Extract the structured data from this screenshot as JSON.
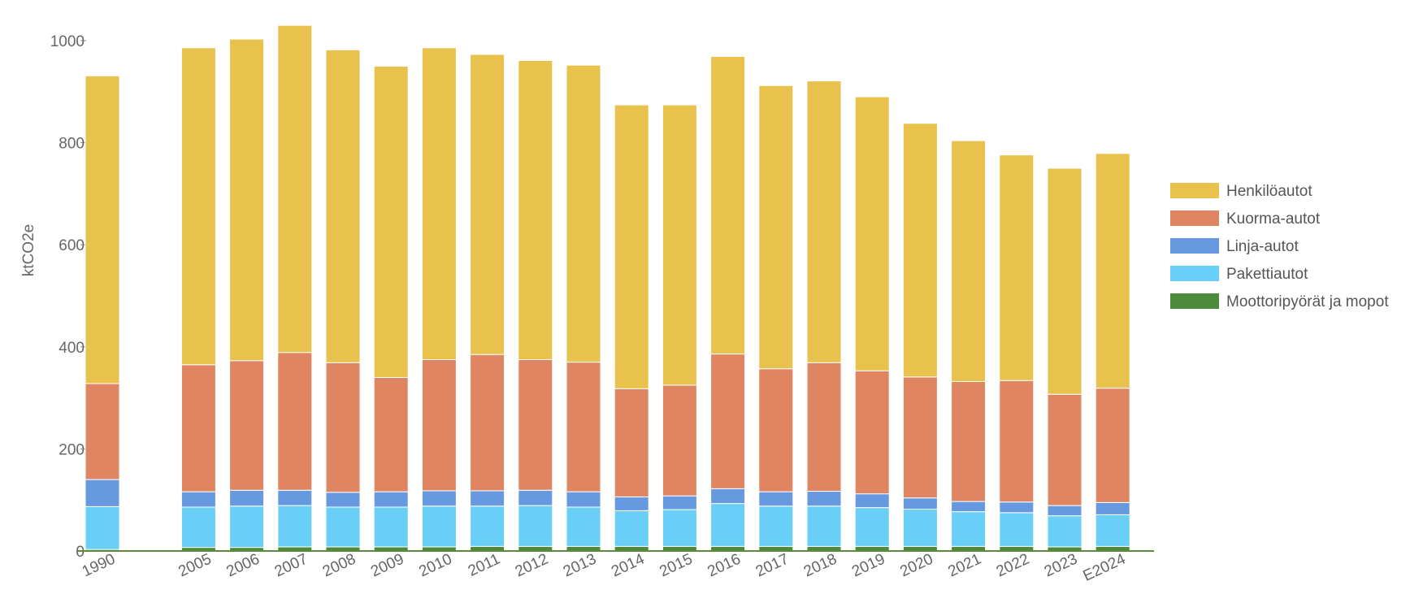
{
  "chart_data": {
    "type": "bar",
    "stacked": true,
    "title": "",
    "xlabel": "",
    "ylabel": "ktCO2e",
    "ylim": [
      0,
      1000
    ],
    "yticks": [
      0,
      200,
      400,
      600,
      800,
      1000
    ],
    "grid": false,
    "legend_position": "right",
    "categories": [
      "1990",
      "",
      "2005",
      "2006",
      "2007",
      "2008",
      "2009",
      "2010",
      "2011",
      "2012",
      "2013",
      "2014",
      "2015",
      "2016",
      "2017",
      "2018",
      "2019",
      "2020",
      "2021",
      "2022",
      "2023",
      "E2024"
    ],
    "series": [
      {
        "name": "Moottoripyörät ja mopot",
        "color": "#4b8b3b",
        "values": [
          3,
          null,
          7,
          7,
          8,
          8,
          8,
          8,
          9,
          9,
          9,
          9,
          9,
          9,
          9,
          9,
          9,
          9,
          9,
          9,
          8,
          9
        ]
      },
      {
        "name": "Pakettiautot",
        "color": "#6acff6",
        "values": [
          84,
          null,
          79,
          81,
          81,
          78,
          78,
          80,
          79,
          80,
          77,
          70,
          72,
          84,
          79,
          79,
          76,
          73,
          68,
          66,
          61,
          62
        ]
      },
      {
        "name": "Linja-autot",
        "color": "#6699e0",
        "values": [
          53,
          null,
          30,
          31,
          30,
          29,
          30,
          30,
          30,
          30,
          30,
          27,
          27,
          29,
          28,
          29,
          27,
          22,
          20,
          21,
          20,
          24
        ]
      },
      {
        "name": "Kuorma-autot",
        "color": "#df8562",
        "values": [
          188,
          null,
          249,
          254,
          270,
          254,
          224,
          257,
          267,
          256,
          254,
          212,
          217,
          264,
          241,
          252,
          241,
          237,
          235,
          238,
          218,
          224
        ]
      },
      {
        "name": "Henkilöautot",
        "color": "#e9c24d",
        "values": [
          603,
          null,
          621,
          630,
          641,
          613,
          610,
          611,
          588,
          586,
          582,
          556,
          549,
          583,
          555,
          552,
          537,
          497,
          472,
          442,
          443,
          460
        ]
      }
    ],
    "legend_order": [
      "Henkilöautot",
      "Kuorma-autot",
      "Linja-autot",
      "Pakettiautot",
      "Moottoripyörät ja mopot"
    ]
  }
}
